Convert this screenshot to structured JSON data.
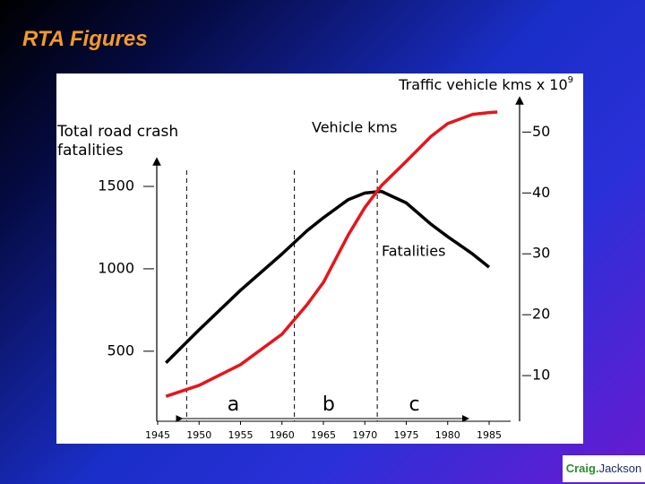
{
  "slide": {
    "title": "RTA Figures",
    "logo": [
      "Craig.",
      "Jackson"
    ]
  },
  "chart_data": {
    "type": "line",
    "ylabel": [
      "Total road crash",
      "fatalities"
    ],
    "y2label": "Traffic vehicle kms x 10",
    "y2label_exp": "9",
    "x": [
      1946,
      1950,
      1955,
      1960,
      1963,
      1965,
      1968,
      1970,
      1972,
      1975,
      1978,
      1980,
      1983,
      1985,
      1986
    ],
    "xlim": [
      1945,
      1985
    ],
    "xticks": [
      1945,
      1950,
      1955,
      1960,
      1965,
      1970,
      1975,
      1980,
      1985
    ],
    "ylim": [
      75,
      1625
    ],
    "yticks": [
      500,
      1000,
      1500
    ],
    "y2lim": [
      2.5,
      55.5
    ],
    "y2ticks": [
      10,
      20,
      30,
      40,
      50
    ],
    "series": [
      {
        "name": "Fatalities",
        "color": "#000000",
        "values": [
          430,
          630,
          870,
          1090,
          1230,
          1310,
          1420,
          1460,
          1470,
          1400,
          1270,
          1195,
          1090,
          1010,
          null
        ]
      },
      {
        "name": "Vehicle kms",
        "color": "#e8141a",
        "axis": "y2",
        "values": [
          6.6,
          8.4,
          11.8,
          16.8,
          21.6,
          25.3,
          33.1,
          37.6,
          41.2,
          45.2,
          49.3,
          51.4,
          52.9,
          53.2,
          53.3
        ]
      }
    ],
    "periods": [
      "a",
      "b",
      "c"
    ],
    "period_bounds": [
      1948.5,
      1961.5,
      1971.5
    ]
  }
}
